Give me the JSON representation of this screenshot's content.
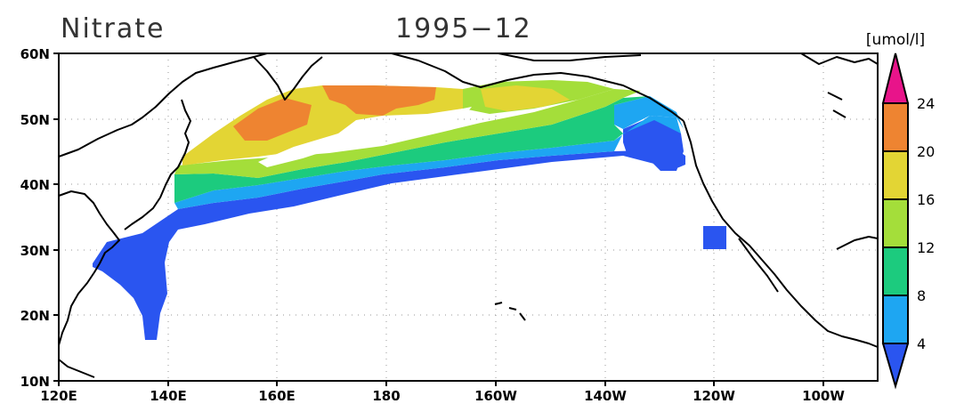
{
  "title": {
    "variable": "Nitrate",
    "date": "1995−12"
  },
  "chart_data": {
    "type": "heatmap",
    "title": "Nitrate 1995-12",
    "units": "[umol/l]",
    "x_range": [
      120,
      270
    ],
    "y_range": [
      10,
      60
    ],
    "x_ticks": [
      "120E",
      "140E",
      "160E",
      "180",
      "160W",
      "140W",
      "120W",
      "100W"
    ],
    "y_ticks": [
      "10N",
      "20N",
      "30N",
      "40N",
      "50N",
      "60N"
    ],
    "grid": true,
    "colorbar": {
      "levels": [
        "4",
        "8",
        "12",
        "16",
        "20",
        "24"
      ],
      "colors": [
        "#2a55f0",
        "#1ea6f2",
        "#1ccb7e",
        "#a4de3a",
        "#e3d534",
        "#ee8431",
        "#e8148a"
      ],
      "placement": "right"
    },
    "bands_note_free": true
  },
  "colors": {
    "c4": "#2a55f0",
    "c8": "#1ea6f2",
    "c12": "#1ccb7e",
    "c16": "#a4de3a",
    "c20": "#e3d534",
    "c24": "#ee8431",
    "cmax": "#e8148a"
  }
}
